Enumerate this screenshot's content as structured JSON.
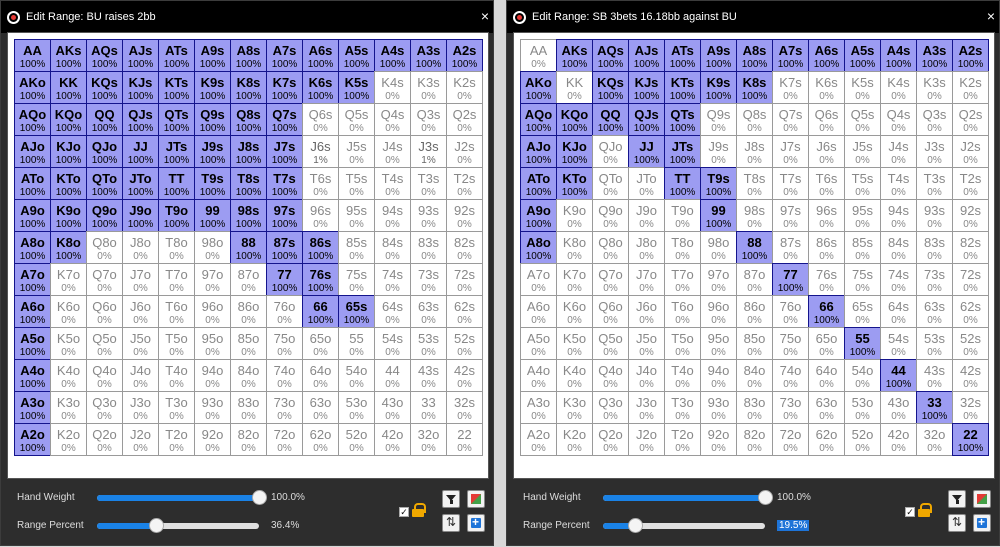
{
  "ranks": [
    "A",
    "K",
    "Q",
    "J",
    "T",
    "9",
    "8",
    "7",
    "6",
    "5",
    "4",
    "3",
    "2"
  ],
  "labels": {
    "hand_weight": "Hand Weight",
    "range_percent": "Range Percent"
  },
  "windows": [
    {
      "title": "Edit Range: BU raises 2bb",
      "close": "×",
      "hand_weight": {
        "value": 100,
        "display": "100.0%"
      },
      "range_percent": {
        "value": 36.4,
        "display": "36.4%",
        "selected": false
      },
      "pct": [
        [
          100,
          100,
          100,
          100,
          100,
          100,
          100,
          100,
          100,
          100,
          100,
          100,
          100
        ],
        [
          100,
          100,
          100,
          100,
          100,
          100,
          100,
          100,
          100,
          100,
          0,
          0,
          0
        ],
        [
          100,
          100,
          100,
          100,
          100,
          100,
          100,
          100,
          0,
          0,
          0,
          0,
          0
        ],
        [
          100,
          100,
          100,
          100,
          100,
          100,
          100,
          100,
          1,
          0,
          0,
          1,
          0
        ],
        [
          100,
          100,
          100,
          100,
          100,
          100,
          100,
          100,
          0,
          0,
          0,
          0,
          0
        ],
        [
          100,
          100,
          100,
          100,
          100,
          100,
          100,
          100,
          0,
          0,
          0,
          0,
          0
        ],
        [
          100,
          100,
          0,
          0,
          0,
          0,
          100,
          100,
          100,
          0,
          0,
          0,
          0
        ],
        [
          100,
          0,
          0,
          0,
          0,
          0,
          0,
          100,
          100,
          0,
          0,
          0,
          0
        ],
        [
          100,
          0,
          0,
          0,
          0,
          0,
          0,
          0,
          100,
          100,
          0,
          0,
          0
        ],
        [
          100,
          0,
          0,
          0,
          0,
          0,
          0,
          0,
          0,
          0,
          0,
          0,
          0
        ],
        [
          100,
          0,
          0,
          0,
          0,
          0,
          0,
          0,
          0,
          0,
          0,
          0,
          0
        ],
        [
          100,
          0,
          0,
          0,
          0,
          0,
          0,
          0,
          0,
          0,
          0,
          0,
          0
        ],
        [
          100,
          0,
          0,
          0,
          0,
          0,
          0,
          0,
          0,
          0,
          0,
          0,
          0
        ]
      ]
    },
    {
      "title": "Edit Range: SB 3bets 16.18bb against BU",
      "close": "×",
      "hand_weight": {
        "value": 100,
        "display": "100.0%"
      },
      "range_percent": {
        "value": 19.5,
        "display": "19.5%",
        "selected": true
      },
      "pct": [
        [
          0,
          100,
          100,
          100,
          100,
          100,
          100,
          100,
          100,
          100,
          100,
          100,
          100
        ],
        [
          100,
          0,
          100,
          100,
          100,
          100,
          100,
          0,
          0,
          0,
          0,
          0,
          0
        ],
        [
          100,
          100,
          100,
          100,
          100,
          0,
          0,
          0,
          0,
          0,
          0,
          0,
          0
        ],
        [
          100,
          100,
          0,
          100,
          100,
          0,
          0,
          0,
          0,
          0,
          0,
          0,
          0
        ],
        [
          100,
          100,
          0,
          0,
          100,
          100,
          0,
          0,
          0,
          0,
          0,
          0,
          0
        ],
        [
          100,
          0,
          0,
          0,
          0,
          100,
          0,
          0,
          0,
          0,
          0,
          0,
          0
        ],
        [
          100,
          0,
          0,
          0,
          0,
          0,
          100,
          0,
          0,
          0,
          0,
          0,
          0
        ],
        [
          0,
          0,
          0,
          0,
          0,
          0,
          0,
          100,
          0,
          0,
          0,
          0,
          0
        ],
        [
          0,
          0,
          0,
          0,
          0,
          0,
          0,
          0,
          100,
          0,
          0,
          0,
          0
        ],
        [
          0,
          0,
          0,
          0,
          0,
          0,
          0,
          0,
          0,
          100,
          0,
          0,
          0
        ],
        [
          0,
          0,
          0,
          0,
          0,
          0,
          0,
          0,
          0,
          0,
          100,
          0,
          0
        ],
        [
          0,
          0,
          0,
          0,
          0,
          0,
          0,
          0,
          0,
          0,
          0,
          100,
          0
        ],
        [
          0,
          0,
          0,
          0,
          0,
          0,
          0,
          0,
          0,
          0,
          0,
          0,
          100
        ]
      ]
    }
  ]
}
